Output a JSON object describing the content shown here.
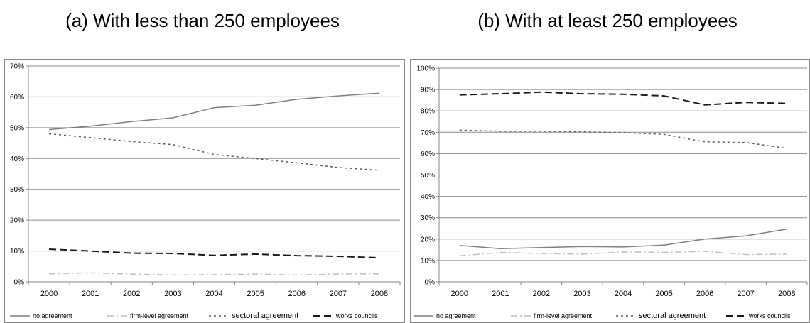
{
  "chart_data": [
    {
      "type": "line",
      "title": "(a)  With less than 250 employees",
      "x": [
        "2000",
        "2001",
        "2002",
        "2003",
        "2004",
        "2005",
        "2006",
        "2007",
        "2008"
      ],
      "ylim": [
        0,
        0.7
      ],
      "yticks": [
        "0%",
        "10%",
        "20%",
        "30%",
        "40%",
        "50%",
        "60%",
        "70%"
      ],
      "grid": true,
      "legend_position": "bottom",
      "series": [
        {
          "name": "no agreement",
          "color": "#7f7f7f",
          "dash": "solid",
          "values": [
            0.494,
            0.505,
            0.52,
            0.532,
            0.565,
            0.573,
            0.592,
            0.603,
            0.612
          ]
        },
        {
          "name": "firm-level agreement",
          "color": "#bfbfbf",
          "dash": "dashdot",
          "values": [
            0.026,
            0.029,
            0.025,
            0.022,
            0.023,
            0.025,
            0.022,
            0.025,
            0.026
          ]
        },
        {
          "name": "sectoral agreement",
          "color": "#595959",
          "dash": "dotted",
          "values": [
            0.48,
            0.468,
            0.455,
            0.445,
            0.413,
            0.4,
            0.386,
            0.371,
            0.362
          ]
        },
        {
          "name": "works councils",
          "color": "#1a1a1a",
          "dash": "dashed",
          "values": [
            0.106,
            0.1,
            0.093,
            0.092,
            0.086,
            0.09,
            0.085,
            0.083,
            0.078
          ]
        }
      ]
    },
    {
      "type": "line",
      "title": "(b) With at least 250 employees",
      "x": [
        "2000",
        "2001",
        "2002",
        "2003",
        "2004",
        "2005",
        "2006",
        "2007",
        "2008"
      ],
      "ylim": [
        0,
        1.0
      ],
      "yticks": [
        "0%",
        "10%",
        "20%",
        "30%",
        "40%",
        "50%",
        "60%",
        "70%",
        "80%",
        "90%",
        "100%"
      ],
      "grid": true,
      "legend_position": "bottom",
      "series": [
        {
          "name": "no agreement",
          "color": "#7f7f7f",
          "dash": "solid",
          "values": [
            0.17,
            0.155,
            0.16,
            0.165,
            0.163,
            0.172,
            0.2,
            0.215,
            0.247
          ]
        },
        {
          "name": "firm-level agreement",
          "color": "#bfbfbf",
          "dash": "dashdot",
          "values": [
            0.122,
            0.138,
            0.133,
            0.13,
            0.14,
            0.138,
            0.143,
            0.128,
            0.13
          ]
        },
        {
          "name": "sectoral agreement",
          "color": "#595959",
          "dash": "dotted",
          "values": [
            0.71,
            0.705,
            0.705,
            0.702,
            0.698,
            0.69,
            0.655,
            0.652,
            0.625
          ]
        },
        {
          "name": "works councils",
          "color": "#1a1a1a",
          "dash": "dashed",
          "values": [
            0.875,
            0.88,
            0.888,
            0.88,
            0.878,
            0.87,
            0.828,
            0.84,
            0.835
          ]
        }
      ]
    }
  ]
}
